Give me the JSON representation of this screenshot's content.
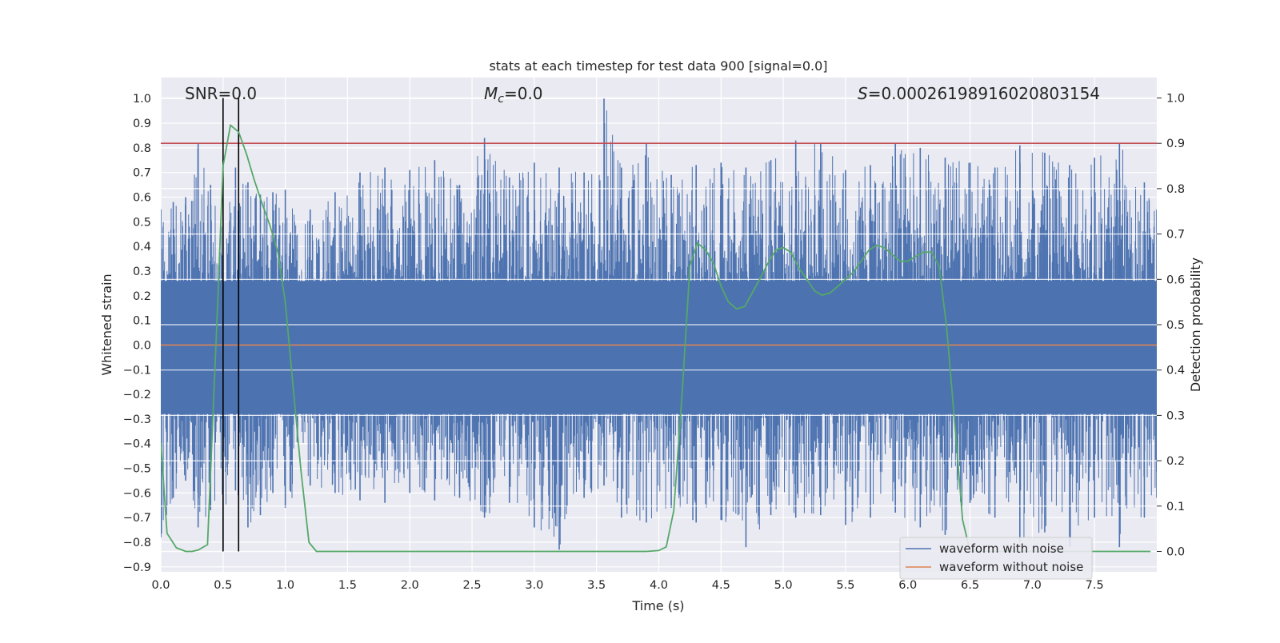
{
  "chart_data": {
    "type": "line",
    "title": "stats at each timestep for test data 900 [signal=0.0]",
    "xlabel": "Time (s)",
    "ylabel_left": "Whitened strain",
    "ylabel_right": "Detection probability",
    "xlim": [
      0.0,
      8.0
    ],
    "ylim_left": [
      -0.92,
      1.085
    ],
    "ylim_right": [
      -0.045,
      1.045
    ],
    "x_ticks": [
      "0.0",
      "0.5",
      "1.0",
      "1.5",
      "2.0",
      "2.5",
      "3.0",
      "3.5",
      "4.0",
      "4.5",
      "5.0",
      "5.5",
      "6.0",
      "6.5",
      "7.0",
      "7.5"
    ],
    "left_ticks": [
      "1.0",
      "0.9",
      "0.8",
      "0.7",
      "0.6",
      "0.5",
      "0.4",
      "0.3",
      "0.2",
      "0.1",
      "0.0",
      "−0.1",
      "−0.2",
      "−0.3",
      "−0.4",
      "−0.5",
      "−0.6",
      "−0.7",
      "−0.8",
      "−0.9"
    ],
    "right_ticks": [
      "1.0",
      "0.9",
      "0.8",
      "0.7",
      "0.6",
      "0.5",
      "0.4",
      "0.3",
      "0.2",
      "0.1",
      "0.0"
    ],
    "grid": true,
    "legend_position": "lower-right",
    "annotations": {
      "snr": "SNR=0.0",
      "mc_symbol": "M",
      "mc_sub": "c",
      "mc_value": "=0.0",
      "s_symbol": "S",
      "s_value": "=0.00026198916020803154"
    },
    "threshold": 0.9,
    "vertical_lines_x": [
      0.5,
      0.625
    ],
    "series": [
      {
        "name": "waveform with noise",
        "color": "#4c72b0",
        "axis": "left",
        "envelope": {
          "x": [
            0.0,
            0.1,
            0.2,
            0.3,
            0.4,
            0.5,
            0.6,
            0.7,
            0.8,
            0.9,
            1.0,
            1.2,
            1.4,
            1.6,
            1.8,
            2.0,
            2.2,
            2.4,
            2.6,
            2.8,
            3.0,
            3.2,
            3.4,
            3.56,
            3.7,
            3.9,
            4.1,
            4.3,
            4.5,
            4.7,
            4.9,
            5.1,
            5.3,
            5.5,
            5.7,
            5.9,
            6.1,
            6.3,
            6.5,
            6.7,
            6.9,
            7.1,
            7.3,
            7.5,
            7.7,
            7.9,
            8.0
          ],
          "max": [
            0.55,
            0.58,
            0.6,
            0.82,
            0.65,
            0.52,
            0.72,
            0.66,
            0.61,
            0.62,
            0.63,
            0.55,
            0.62,
            0.7,
            0.72,
            0.71,
            0.75,
            0.65,
            0.84,
            0.68,
            0.74,
            0.72,
            0.7,
            1.0,
            0.72,
            0.82,
            0.69,
            0.73,
            0.74,
            0.72,
            0.75,
            0.83,
            0.82,
            0.71,
            0.73,
            0.82,
            0.8,
            0.76,
            0.74,
            0.72,
            0.81,
            0.78,
            0.73,
            0.76,
            0.82,
            0.66,
            0.55
          ],
          "min": [
            -0.78,
            -0.62,
            -0.55,
            -0.74,
            -0.67,
            -0.83,
            -0.59,
            -0.74,
            -0.69,
            -0.6,
            -0.66,
            -0.57,
            -0.6,
            -0.63,
            -0.64,
            -0.6,
            -0.63,
            -0.62,
            -0.7,
            -0.64,
            -0.74,
            -0.83,
            -0.62,
            -0.57,
            -0.7,
            -0.72,
            -0.66,
            -0.72,
            -0.71,
            -0.82,
            -0.69,
            -0.7,
            -0.69,
            -0.73,
            -0.7,
            -0.68,
            -0.74,
            -0.77,
            -0.64,
            -0.7,
            -0.8,
            -0.76,
            -0.82,
            -0.7,
            -0.82,
            -0.7,
            -0.62
          ]
        }
      },
      {
        "name": "waveform without noise",
        "color": "#dd8452",
        "axis": "left",
        "x": [
          0.0,
          8.0
        ],
        "y": [
          0.0,
          0.0
        ]
      },
      {
        "name": "detection probability",
        "color": "#55a868",
        "axis": "right",
        "x": [
          0.0,
          0.05,
          0.125,
          0.2,
          0.25,
          0.3,
          0.375,
          0.45,
          0.5,
          0.56,
          0.625,
          0.69,
          0.75,
          0.81,
          0.875,
          0.94,
          1.0,
          1.06,
          1.125,
          1.19,
          1.25,
          1.5,
          2.0,
          2.5,
          3.0,
          3.5,
          3.9,
          4.0,
          4.06,
          4.12,
          4.19,
          4.25,
          4.31,
          4.375,
          4.44,
          4.5,
          4.56,
          4.625,
          4.69,
          4.75,
          4.81,
          4.875,
          4.94,
          5.0,
          5.06,
          5.125,
          5.19,
          5.25,
          5.31,
          5.375,
          5.44,
          5.5,
          5.56,
          5.625,
          5.69,
          5.75,
          5.81,
          5.875,
          5.94,
          6.0,
          6.06,
          6.125,
          6.19,
          6.25,
          6.31,
          6.375,
          6.44,
          6.5,
          6.56,
          6.625,
          7.0,
          7.5,
          7.95
        ],
        "y": [
          0.24,
          0.04,
          0.008,
          0.0,
          0.0,
          0.003,
          0.015,
          0.5,
          0.85,
          0.94,
          0.925,
          0.875,
          0.82,
          0.77,
          0.72,
          0.66,
          0.55,
          0.37,
          0.18,
          0.02,
          0.0,
          0.0,
          0.0,
          0.0,
          0.0,
          0.0,
          0.0,
          0.002,
          0.01,
          0.09,
          0.36,
          0.63,
          0.68,
          0.665,
          0.635,
          0.585,
          0.55,
          0.535,
          0.54,
          0.57,
          0.6,
          0.635,
          0.665,
          0.67,
          0.66,
          0.625,
          0.6,
          0.575,
          0.565,
          0.57,
          0.585,
          0.6,
          0.615,
          0.64,
          0.665,
          0.675,
          0.67,
          0.655,
          0.64,
          0.64,
          0.65,
          0.66,
          0.66,
          0.63,
          0.5,
          0.29,
          0.07,
          0.0,
          0.0,
          0.0,
          0.0,
          0.0,
          0.0
        ]
      }
    ]
  }
}
